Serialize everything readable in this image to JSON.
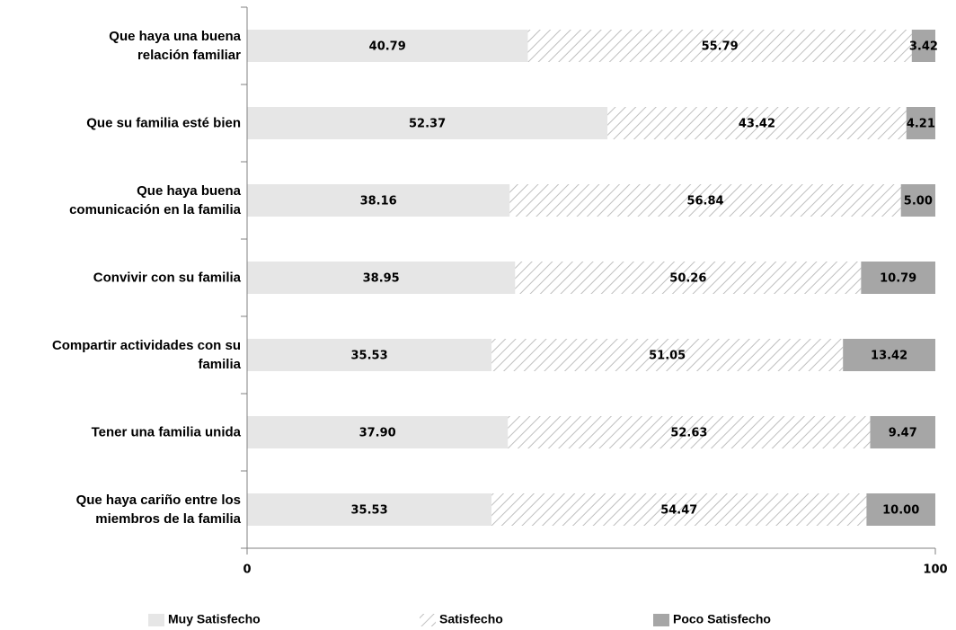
{
  "chart_data": {
    "type": "stacked_barh",
    "categories": [
      "Que haya una buena\nrelación familiar",
      "Que su familia  esté bien",
      "Que haya buena\ncomunicación en la familia",
      "Convivir con su familia",
      "Compartir actividades con su\nfamilia",
      "Tener una familia unida",
      "Que haya cariño entre los\nmiembros de la familia"
    ],
    "series": [
      {
        "name": "Muy Satisfecho",
        "color": "#e6e6e6",
        "hatch": false,
        "values": [
          40.79,
          52.37,
          38.16,
          38.95,
          35.53,
          37.9,
          35.53
        ],
        "value_labels": [
          "40.79",
          "52.37",
          "38.16",
          "38.95",
          "35.53",
          "37.90",
          "35.53"
        ]
      },
      {
        "name": "Satisfecho",
        "color": "#bfbfbf",
        "hatch": true,
        "values": [
          55.79,
          43.42,
          56.84,
          50.26,
          51.05,
          52.63,
          54.47
        ],
        "value_labels": [
          "55.79",
          "43.42",
          "56.84",
          "50.26",
          "51.05",
          "52.63",
          "54.47"
        ]
      },
      {
        "name": "Poco Satisfecho",
        "color": "#a6a6a6",
        "hatch": false,
        "values": [
          3.42,
          4.21,
          5,
          10.79,
          13.42,
          9.47,
          10
        ],
        "value_labels": [
          "3.42",
          "4.21",
          "5.00",
          "10.79",
          "13.42",
          "9.47",
          "10.00"
        ]
      }
    ],
    "xlim": [
      0,
      100
    ],
    "xticks": [
      0,
      100
    ],
    "legend": "bottom"
  }
}
